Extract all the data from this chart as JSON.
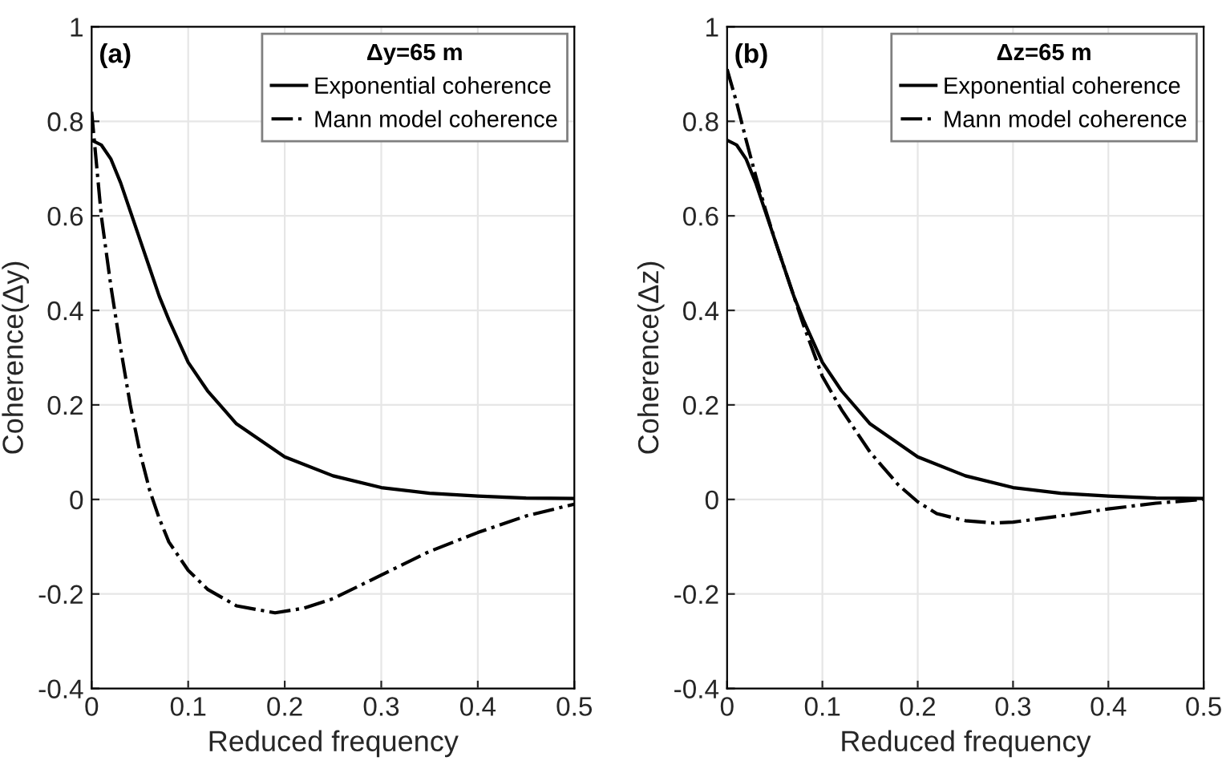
{
  "chart_data": [
    {
      "type": "line",
      "xlabel": "Reduced frequency",
      "ylabel": "Coherence(Δy)",
      "legend_title": "Δy=65 m",
      "annotations": [
        "(a)"
      ],
      "xlim": [
        0,
        0.5
      ],
      "ylim": [
        -0.4,
        1
      ],
      "xticks": [
        0,
        0.1,
        0.2,
        0.3,
        0.4,
        0.5
      ],
      "yticks": [
        -0.4,
        -0.2,
        0,
        0.2,
        0.4,
        0.6,
        0.8,
        1
      ],
      "grid": true,
      "legend": "top right",
      "series": [
        {
          "name": "Exponential coherence",
          "color": "#000000",
          "line_style": "solid",
          "x": [
            0,
            0.01,
            0.02,
            0.03,
            0.04,
            0.05,
            0.06,
            0.07,
            0.08,
            0.1,
            0.12,
            0.15,
            0.2,
            0.25,
            0.3,
            0.35,
            0.4,
            0.45,
            0.5
          ],
          "values": [
            0.76,
            0.75,
            0.72,
            0.67,
            0.61,
            0.55,
            0.49,
            0.43,
            0.38,
            0.29,
            0.23,
            0.16,
            0.09,
            0.05,
            0.025,
            0.013,
            0.007,
            0.003,
            0.002
          ]
        },
        {
          "name": "Mann model coherence",
          "color": "#000000",
          "line_style": "dashdot",
          "x": [
            0,
            0.01,
            0.02,
            0.03,
            0.04,
            0.05,
            0.06,
            0.07,
            0.08,
            0.1,
            0.12,
            0.15,
            0.19,
            0.22,
            0.25,
            0.3,
            0.35,
            0.4,
            0.45,
            0.5
          ],
          "values": [
            0.82,
            0.6,
            0.45,
            0.32,
            0.2,
            0.1,
            0.02,
            -0.04,
            -0.09,
            -0.15,
            -0.19,
            -0.225,
            -0.24,
            -0.23,
            -0.21,
            -0.16,
            -0.11,
            -0.07,
            -0.035,
            -0.01
          ]
        }
      ]
    },
    {
      "type": "line",
      "xlabel": "Reduced frequency",
      "ylabel": "Coherence(Δz)",
      "legend_title": "Δz=65 m",
      "annotations": [
        "(b)"
      ],
      "xlim": [
        0,
        0.5
      ],
      "ylim": [
        -0.4,
        1
      ],
      "xticks": [
        0,
        0.1,
        0.2,
        0.3,
        0.4,
        0.5
      ],
      "yticks": [
        -0.4,
        -0.2,
        0,
        0.2,
        0.4,
        0.6,
        0.8,
        1
      ],
      "grid": true,
      "legend": "top right",
      "series": [
        {
          "name": "Exponential coherence",
          "color": "#000000",
          "line_style": "solid",
          "x": [
            0,
            0.01,
            0.02,
            0.03,
            0.04,
            0.05,
            0.06,
            0.07,
            0.08,
            0.1,
            0.12,
            0.15,
            0.2,
            0.25,
            0.3,
            0.35,
            0.4,
            0.45,
            0.5
          ],
          "values": [
            0.76,
            0.75,
            0.72,
            0.67,
            0.61,
            0.55,
            0.49,
            0.43,
            0.38,
            0.29,
            0.23,
            0.16,
            0.09,
            0.05,
            0.025,
            0.013,
            0.007,
            0.003,
            0.002
          ]
        },
        {
          "name": "Mann model coherence",
          "color": "#000000",
          "line_style": "dashdot",
          "x": [
            0,
            0.01,
            0.02,
            0.03,
            0.04,
            0.05,
            0.06,
            0.07,
            0.08,
            0.1,
            0.12,
            0.15,
            0.18,
            0.2,
            0.22,
            0.25,
            0.28,
            0.3,
            0.35,
            0.4,
            0.45,
            0.5
          ],
          "values": [
            0.91,
            0.84,
            0.76,
            0.685,
            0.615,
            0.55,
            0.49,
            0.43,
            0.37,
            0.26,
            0.19,
            0.1,
            0.03,
            -0.005,
            -0.03,
            -0.045,
            -0.05,
            -0.048,
            -0.035,
            -0.02,
            -0.008,
            0.0
          ]
        }
      ]
    }
  ]
}
